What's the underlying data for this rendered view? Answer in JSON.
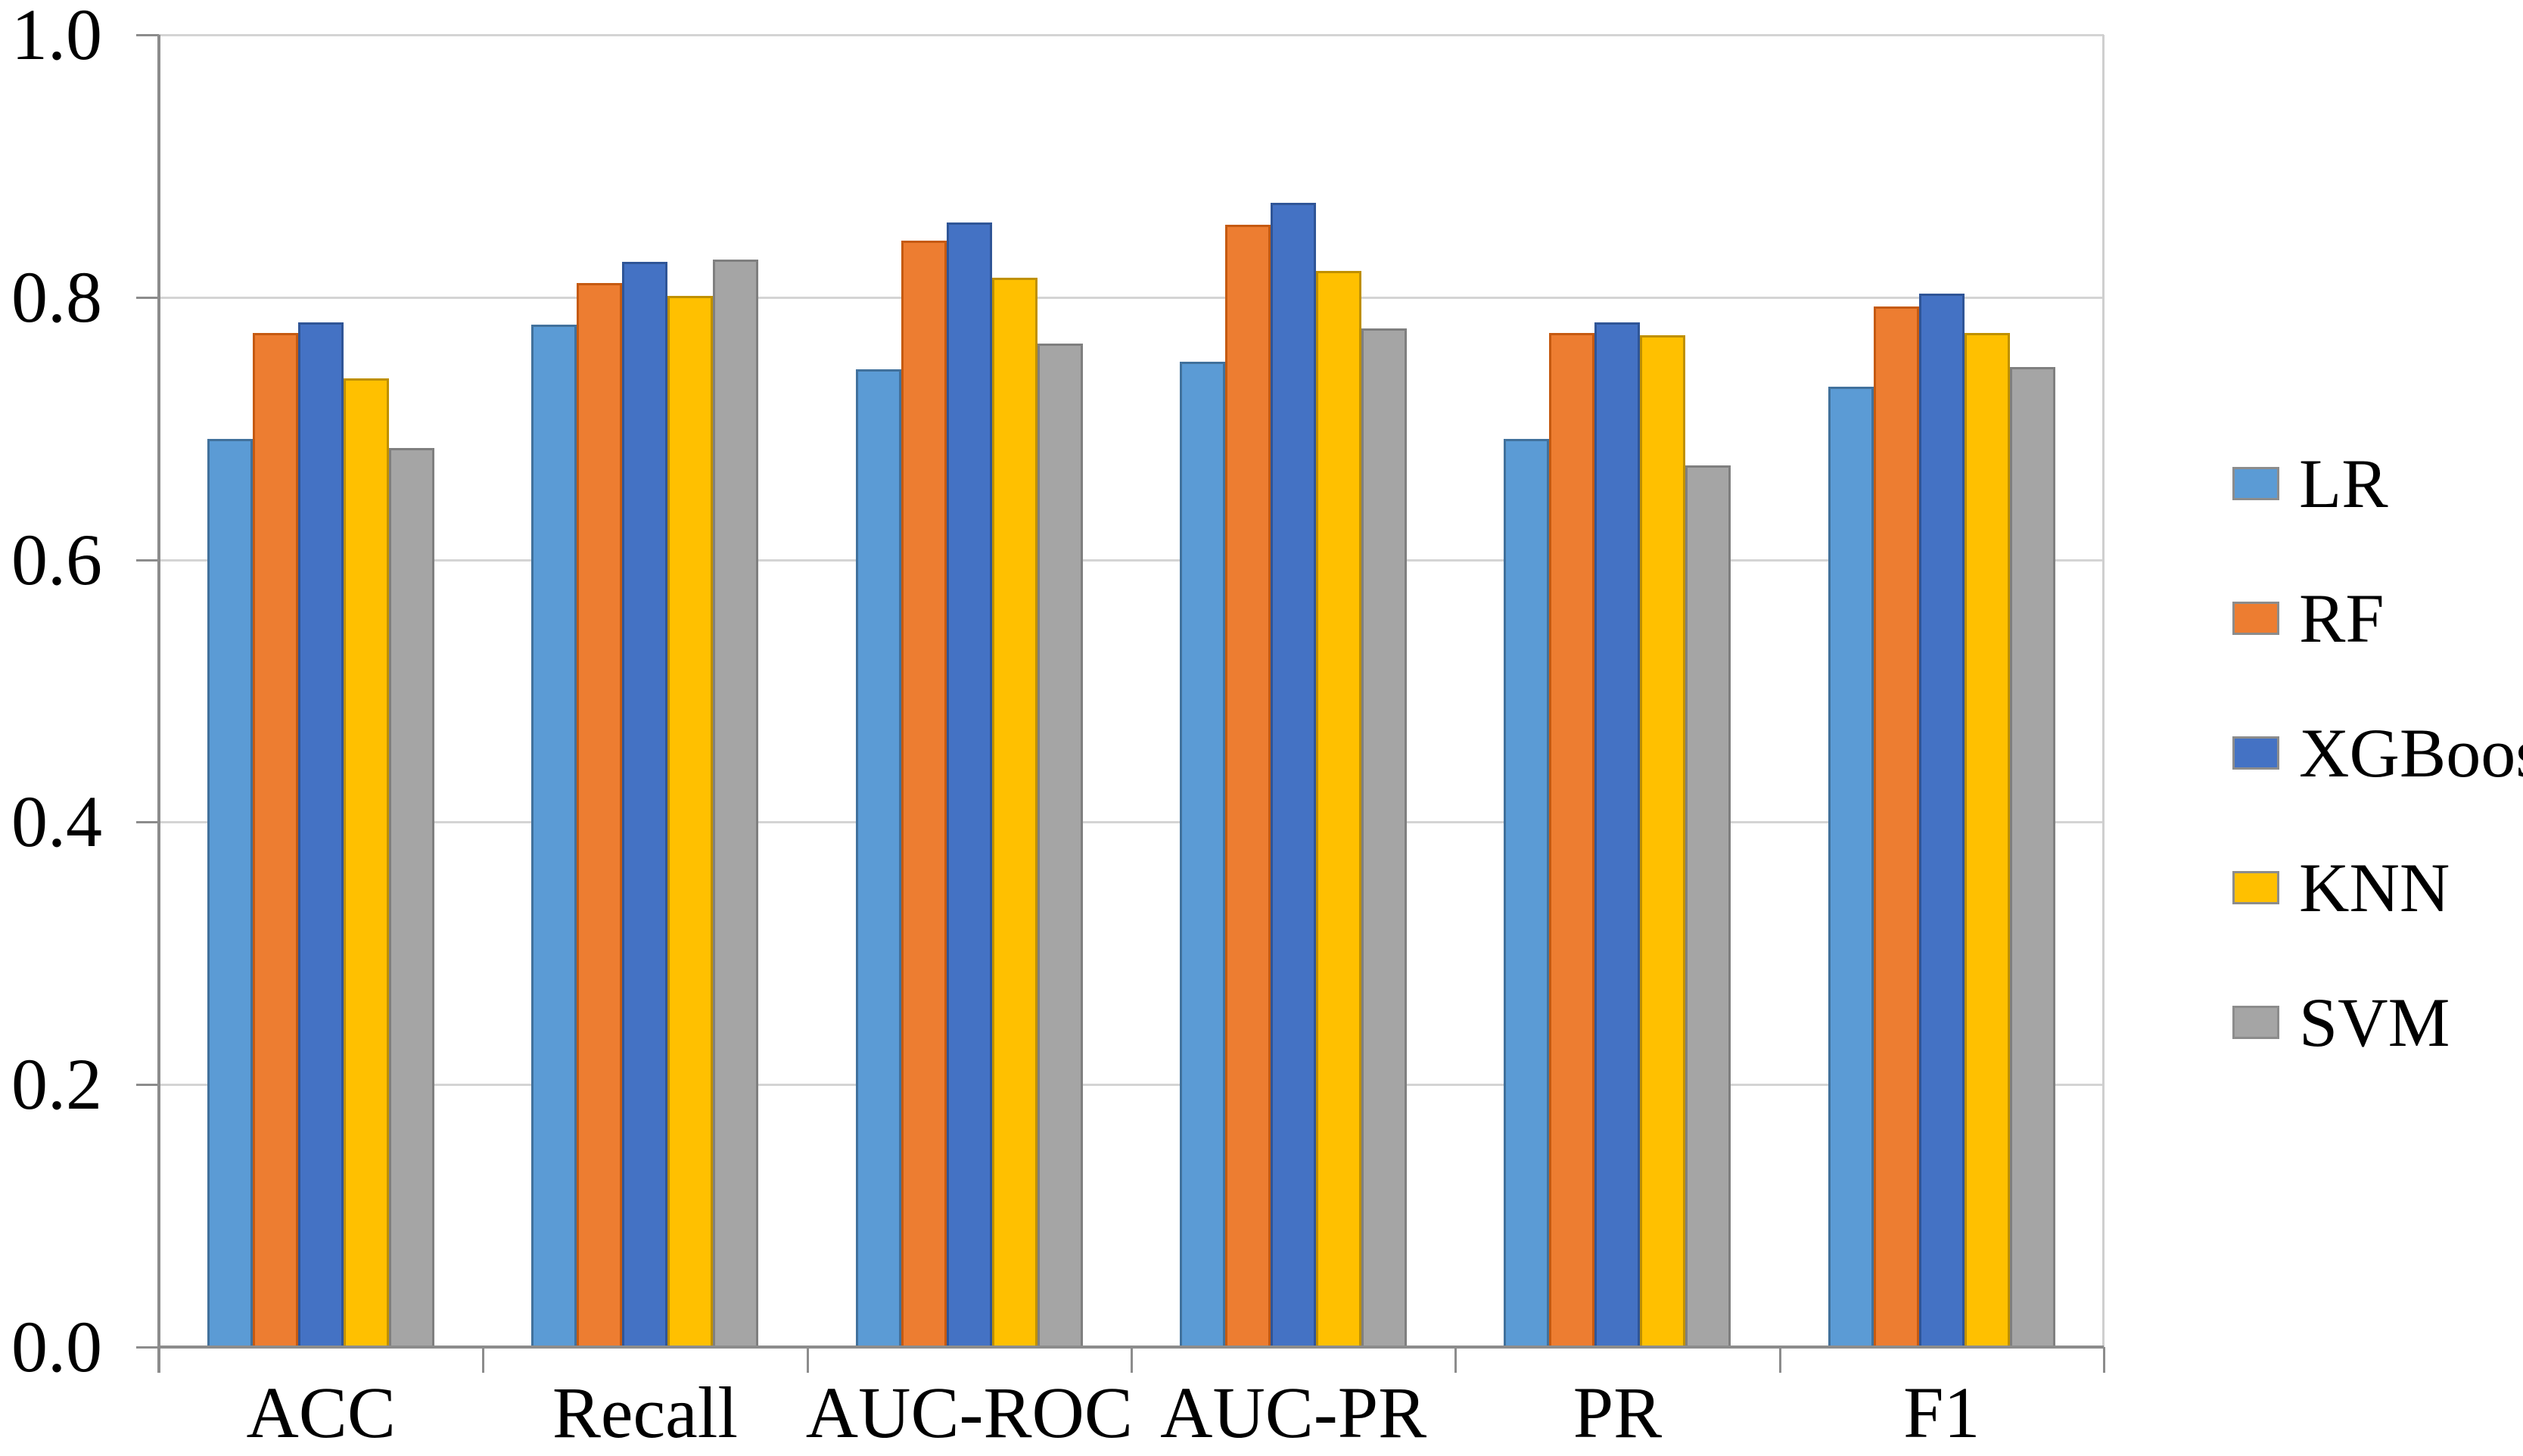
{
  "chart_data": {
    "type": "bar",
    "title": "",
    "categories": [
      "ACC",
      "Recall",
      "AUC-ROC",
      "AUC-PR",
      "PR",
      "F1"
    ],
    "series": [
      {
        "name": "LR",
        "color": "#5B9BD5",
        "border_color": "#41719C",
        "values": [
          0.692,
          0.779,
          0.745,
          0.751,
          0.692,
          0.732
        ]
      },
      {
        "name": "RF",
        "color": "#ED7D31",
        "border_color": "#C55A11",
        "values": [
          0.773,
          0.811,
          0.843,
          0.855,
          0.773,
          0.793
        ]
      },
      {
        "name": "XGBoost",
        "color": "#4472C4",
        "border_color": "#2F5597",
        "values": [
          0.781,
          0.827,
          0.857,
          0.872,
          0.781,
          0.803
        ]
      },
      {
        "name": "KNN",
        "color": "#FFC000",
        "border_color": "#BF9000",
        "values": [
          0.738,
          0.801,
          0.815,
          0.82,
          0.771,
          0.773
        ]
      },
      {
        "name": "SVM",
        "color": "#A5A5A5",
        "border_color": "#7F7F7F",
        "values": [
          0.685,
          0.829,
          0.765,
          0.776,
          0.672,
          0.747
        ]
      }
    ],
    "ylim": [
      0.0,
      1.0
    ],
    "ytick_labels": [
      "1.0",
      "0.8",
      "0.6",
      "0.4",
      "0.2",
      "0.0"
    ],
    "ytick_values": [
      1.0,
      0.8,
      0.6,
      0.4,
      0.2,
      0.0
    ],
    "grid": true,
    "gridline_color": "#D4D4D4",
    "axis_color": "#8C8C8C",
    "legend_position": "right",
    "legend_labels": [
      "LR",
      "RF",
      "XGBoost",
      "KNN",
      "SVM"
    ]
  }
}
